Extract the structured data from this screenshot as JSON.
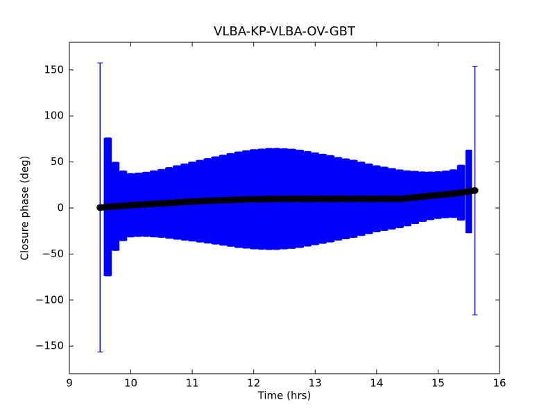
{
  "chart_data": {
    "type": "errorbar",
    "title": "VLBA-KP-VLBA-OV-GBT",
    "x_label": "Time (hrs)",
    "y_label": "Closure phase (deg)",
    "xlim": [
      9,
      16
    ],
    "xticks": [
      9,
      10,
      11,
      12,
      13,
      14,
      15,
      16
    ],
    "ylim": [
      -180,
      180
    ],
    "yticks": [
      {
        "value": -150,
        "label": "−150"
      },
      {
        "value": -100,
        "label": "−100"
      },
      {
        "value": -50,
        "label": "−50"
      },
      0,
      50,
      100,
      150
    ],
    "series": [
      {
        "color": "#000000",
        "error_color": "#0000ff",
        "x": [
          9.5,
          9.625,
          9.75,
          9.875,
          10,
          10.125,
          10.25,
          10.375,
          10.5,
          10.625,
          10.75,
          10.875,
          11,
          11.125,
          11.25,
          11.375,
          11.5,
          11.625,
          11.75,
          11.875,
          12,
          12.125,
          12.25,
          12.375,
          12.5,
          12.625,
          12.75,
          12.875,
          13,
          13.125,
          13.25,
          13.375,
          13.5,
          13.625,
          13.75,
          13.875,
          14,
          14.125,
          14.25,
          14.375,
          14.5,
          14.625,
          14.75,
          14.875,
          15,
          15.125,
          15.25,
          15.375,
          15.5,
          15.6
        ],
        "values": [
          0.5,
          1.2,
          1.8,
          2.4,
          3,
          3.5,
          4,
          4.5,
          5,
          5.5,
          6,
          6.5,
          7,
          7.4,
          7.8,
          8.2,
          8.5,
          8.8,
          9,
          9.3,
          9.5,
          9.6,
          9.8,
          9.9,
          10,
          10,
          10,
          10,
          10,
          10,
          10,
          10,
          10,
          10,
          10,
          10,
          10,
          10,
          10,
          10,
          10.5,
          11.5,
          12.3,
          13.2,
          14,
          14.8,
          15.6,
          16.6,
          18,
          19
        ],
        "errors": [
          157,
          75,
          48,
          38,
          34.5,
          34.5,
          35,
          36,
          37,
          38.5,
          40,
          41.5,
          43,
          44.5,
          46,
          47.5,
          49,
          50.5,
          52,
          53,
          54,
          54.5,
          55,
          55,
          54.5,
          54,
          53,
          51.5,
          50,
          48.5,
          47,
          45,
          43.5,
          42,
          40,
          38,
          36,
          34.5,
          33,
          31.5,
          30,
          28.5,
          27,
          26,
          25.5,
          25.5,
          26,
          30,
          45,
          135
        ]
      }
    ]
  }
}
